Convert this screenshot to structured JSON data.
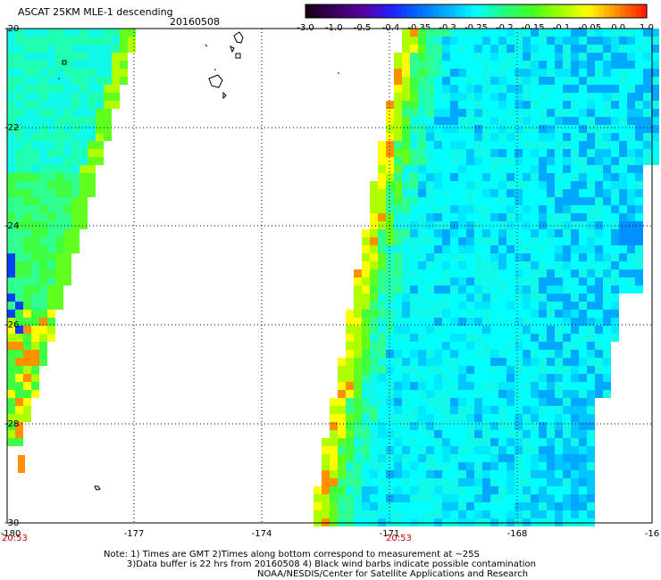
{
  "header": {
    "title": "ASCAT 25KM MLE-1 descending",
    "date": "20160508"
  },
  "colorbar": {
    "labels": [
      "-3.0",
      "-1.0",
      "-0.5",
      "-0.4",
      "-0.35",
      "-0.3",
      "-0.25",
      "-0.2",
      "-0.15",
      "-0.1",
      "-0.05",
      "0.0",
      "1.0"
    ],
    "colors": [
      "#1a001a",
      "#3a0060",
      "#5a00a0",
      "#2020ff",
      "#0070ff",
      "#00b0ff",
      "#00ffff",
      "#20ff80",
      "#40ff20",
      "#a0ff00",
      "#ffff00",
      "#ff9000",
      "#ff2000"
    ]
  },
  "map": {
    "lon_labels": [
      "-180",
      "-177",
      "-174",
      "-171",
      "-168",
      "-16"
    ],
    "lat_labels": [
      "-20",
      "-22",
      "-24",
      "-26",
      "-28",
      "-30"
    ],
    "lon_range": [
      -180,
      -165
    ],
    "lat_range": [
      -20,
      -30
    ],
    "time_labels": [
      "20:53",
      "20:53"
    ],
    "time_color": "#cc0000",
    "grid": "dotted"
  },
  "footer": {
    "line1": "Note: 1) Times are GMT 2)Times along bottom correspond to measurement at ~25S",
    "line2": "3)Data buffer is 22 hrs from 20160508 4) Black wind barbs indicate possible contamination",
    "line3": "NOAA/NESDIS/Center for Satellite Applications and Research"
  }
}
